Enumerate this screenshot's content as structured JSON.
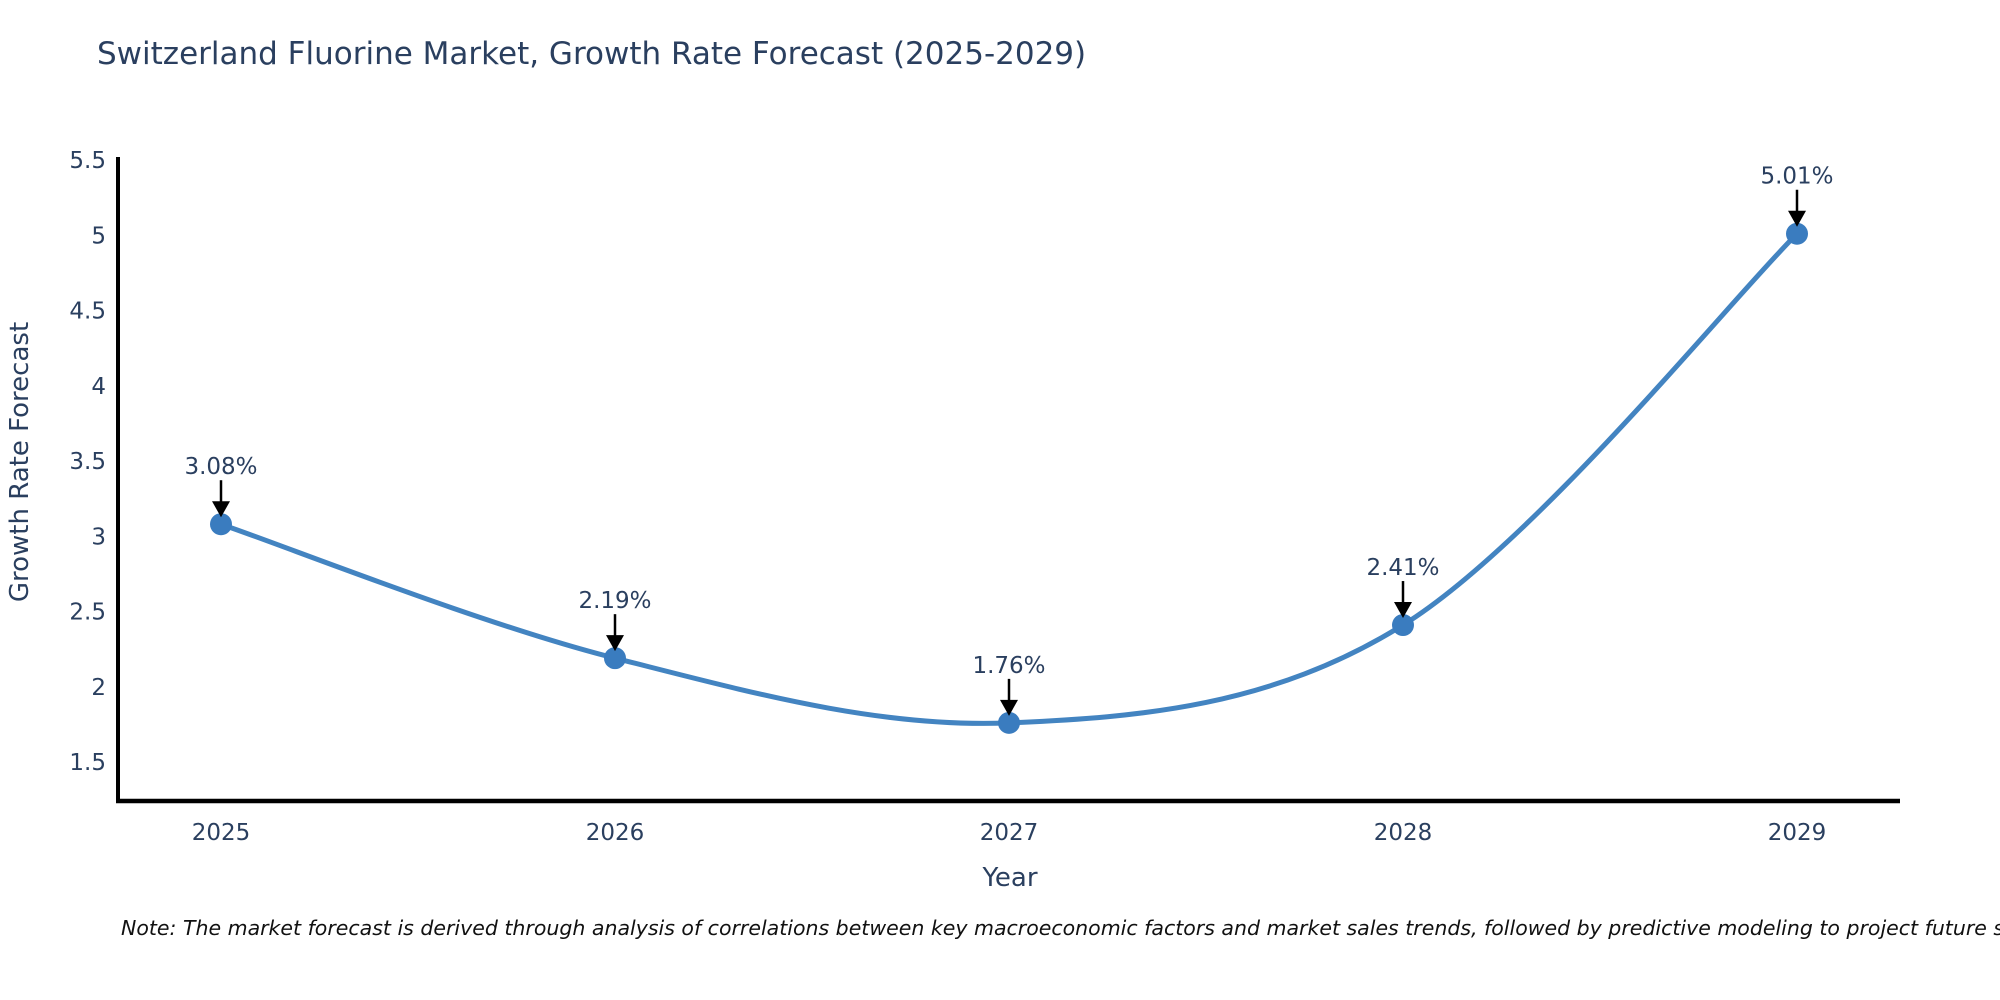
{
  "title": "Switzerland Fluorine Market, Growth Rate Forecast (2025-2029)",
  "note": "Note: The market forecast is derived through analysis of correlations between key macroeconomic factors and market sales trends, followed by predictive modeling to project future sales",
  "chart_data": {
    "type": "line",
    "title": "Switzerland Fluorine Market, Growth Rate Forecast (2025-2029)",
    "x": [
      "2025",
      "2026",
      "2027",
      "2028",
      "2029"
    ],
    "series": [
      {
        "name": "Growth Rate Forecast",
        "values": [
          3.08,
          2.19,
          1.76,
          2.41,
          5.01
        ]
      }
    ],
    "point_labels": [
      "3.08%",
      "2.19%",
      "1.76%",
      "2.41%",
      "5.01%"
    ],
    "xlabel": "Year",
    "ylabel": "Growth Rate Forecast",
    "yticks": [
      "5.5",
      "5",
      "4.5",
      "4",
      "3.5",
      "3",
      "2.5",
      "2",
      "1.5"
    ],
    "ylim": [
      1.24,
      5.51
    ],
    "grid": false,
    "legend": "none",
    "smooth_spline": true,
    "line_color": "#4384c1",
    "marker_color": "#3a7cbf",
    "axis_color": "#000000",
    "tick_label_color": "#2a3f5f",
    "annotation_color": "#2a3f5f",
    "arrow_color": "#000000",
    "title_color": "#2a3f5f"
  }
}
